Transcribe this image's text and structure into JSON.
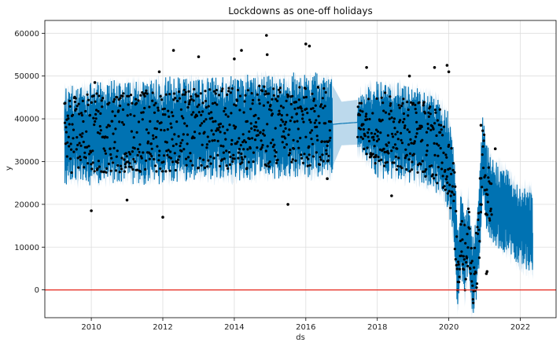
{
  "chart_data": {
    "type": "line",
    "title": "Lockdowns as one-off holidays",
    "xlabel": "ds",
    "ylabel": "y",
    "xlim": [
      2008.7,
      2023.0
    ],
    "ylim": [
      -6500,
      63000
    ],
    "x_ticks": [
      2010,
      2012,
      2014,
      2016,
      2018,
      2020,
      2022
    ],
    "x_tick_labels": [
      "2010",
      "2012",
      "2014",
      "2016",
      "2018",
      "2020",
      "2022"
    ],
    "y_ticks": [
      0,
      10000,
      20000,
      30000,
      40000,
      50000,
      60000
    ],
    "y_tick_labels": [
      "0",
      "10000",
      "20000",
      "30000",
      "40000",
      "50000",
      "60000"
    ],
    "grid": true,
    "series": [
      {
        "role": "forecast",
        "color": "#0072B2",
        "x": [
          2009.25,
          2010.0,
          2011.0,
          2012.0,
          2013.0,
          2014.0,
          2015.0,
          2016.0,
          2016.75,
          2017.0,
          2017.5,
          2018.0,
          2019.0,
          2019.6,
          2019.8,
          2020.0,
          2020.15,
          2020.25,
          2020.35,
          2020.45,
          2020.55,
          2020.65,
          2020.75,
          2020.85,
          2020.95,
          2021.05,
          2021.15,
          2021.3,
          2021.6,
          2021.8,
          2022.0,
          2022.35
        ],
        "y": [
          36000,
          36500,
          37000,
          37200,
          37500,
          37800,
          38200,
          38500,
          38700,
          38900,
          39200,
          37500,
          36500,
          34500,
          33000,
          30000,
          21000,
          4000,
          14000,
          7000,
          14000,
          3000,
          6000,
          14000,
          32000,
          24000,
          22000,
          20500,
          18500,
          16500,
          15000,
          13500
        ],
        "upper": [
          45000,
          46000,
          46500,
          47000,
          47000,
          47500,
          48000,
          47500,
          47800,
          44000,
          44500,
          46500,
          45500,
          43500,
          42000,
          39000,
          30000,
          12000,
          22000,
          15000,
          22000,
          10000,
          14000,
          22000,
          40000,
          32000,
          30000,
          28500,
          26500,
          24500,
          23000,
          22000
        ],
        "lower": [
          27000,
          27000,
          27500,
          27500,
          28000,
          28000,
          28500,
          28500,
          28800,
          33800,
          34000,
          28500,
          27500,
          25500,
          24000,
          21000,
          12000,
          -4000,
          6000,
          -1000,
          6000,
          -4000,
          -2000,
          6000,
          24000,
          16000,
          14000,
          12500,
          10500,
          8500,
          7000,
          5000
        ]
      }
    ],
    "observed_ranges": [
      [
        2009.25,
        2016.7
      ],
      [
        2017.45,
        2021.2
      ]
    ],
    "observed_outliers": [
      {
        "x": 2010.0,
        "y": 18500
      },
      {
        "x": 2010.1,
        "y": 48500
      },
      {
        "x": 2011.0,
        "y": 21000
      },
      {
        "x": 2011.9,
        "y": 51000
      },
      {
        "x": 2012.0,
        "y": 17000
      },
      {
        "x": 2012.3,
        "y": 56000
      },
      {
        "x": 2013.0,
        "y": 54500
      },
      {
        "x": 2014.0,
        "y": 54000
      },
      {
        "x": 2014.2,
        "y": 56000
      },
      {
        "x": 2014.9,
        "y": 59500
      },
      {
        "x": 2014.92,
        "y": 55000
      },
      {
        "x": 2015.5,
        "y": 20000
      },
      {
        "x": 2016.0,
        "y": 57500
      },
      {
        "x": 2016.1,
        "y": 57000
      },
      {
        "x": 2016.6,
        "y": 26000
      },
      {
        "x": 2017.7,
        "y": 52000
      },
      {
        "x": 2018.4,
        "y": 22000
      },
      {
        "x": 2018.9,
        "y": 50000
      },
      {
        "x": 2019.6,
        "y": 52000
      },
      {
        "x": 2019.95,
        "y": 52500
      },
      {
        "x": 2020.0,
        "y": 51000
      },
      {
        "x": 2020.9,
        "y": 38500
      },
      {
        "x": 2021.05,
        "y": 3800
      },
      {
        "x": 2021.07,
        "y": 4300
      },
      {
        "x": 2021.3,
        "y": 33000
      }
    ],
    "reference_line": {
      "y": 0,
      "color": "#e8372c"
    },
    "colors": {
      "forecast": "#0072B2",
      "interval": "#bcd9ec",
      "points": "#000000",
      "grid": "#dddddd"
    }
  }
}
